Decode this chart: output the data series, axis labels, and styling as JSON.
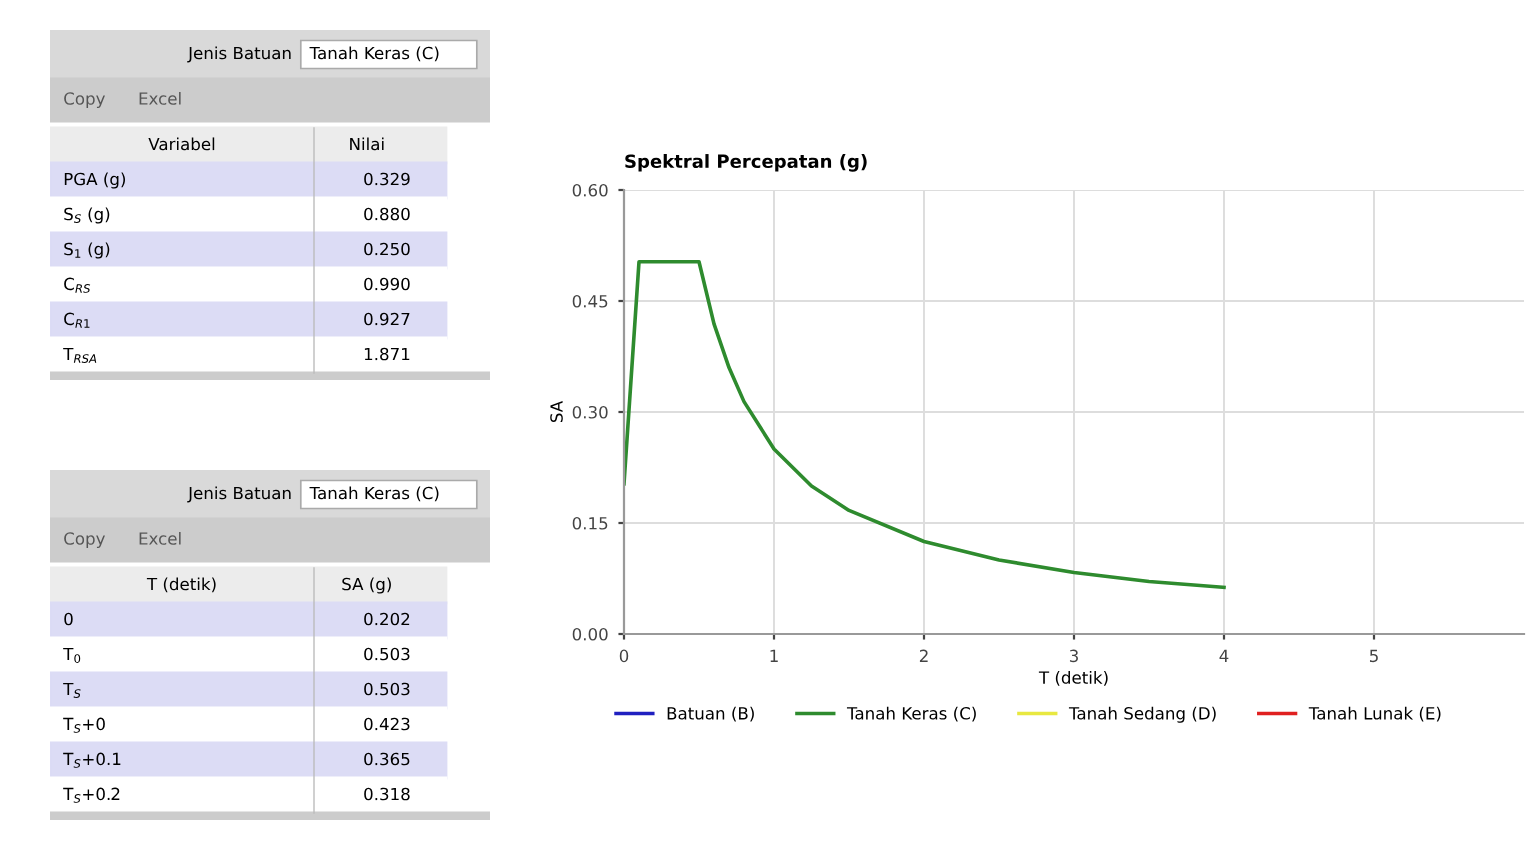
{
  "chart_data": [
    {
      "type": "other",
      "title": "Jenis Batuan",
      "subtitle": "Tanah Keras (C)",
      "annotations": [
        "Copy",
        "Excel",
        "Variabel",
        "Nilai",
        "PGA (g)",
        "0.329",
        "S$_{S}$ (g)",
        "0.880",
        "S$_{1}$ (g)",
        "0.250",
        "C$_{RS}$",
        "0.990",
        "C$_{R1}$",
        "0.927",
        "T$_{RSA}$",
        "1.871"
      ]
    },
    {
      "type": "other",
      "title": "Jenis Batuan",
      "subtitle": "Tanah Keras (C)",
      "annotations": [
        "Copy",
        "Excel",
        "T (detik)",
        "SA (g)",
        "0",
        "0.202",
        "T$_{0}$",
        "0.503",
        "T$_{S}$",
        "0.503",
        "T$_{S}$+0",
        "0.423",
        "T$_{S}$+0.1",
        "0.365",
        "T$_{S}$+0.2",
        "0.318"
      ]
    },
    {
      "type": "line",
      "title": "Spektral Percepatan (g)",
      "xlabel": "T (detik)",
      "ylabel": "SA",
      "xlim": [
        0,
        6
      ],
      "xticks": [
        0,
        1,
        2,
        3,
        4,
        5
      ],
      "ylim": [
        0,
        0.6
      ],
      "yticks": [
        {
          "value": 0,
          "label": "0.00"
        },
        {
          "value": 0.15,
          "label": "0.15"
        },
        {
          "value": 0.3,
          "label": "0.30"
        },
        {
          "value": 0.45,
          "label": "0.45"
        },
        {
          "value": 0.6,
          "label": "0.60"
        }
      ],
      "grid": true,
      "legend": "bottom",
      "series": [
        {
          "name": "Batuan (B)",
          "color": "#2020c0"
        },
        {
          "name": "Tanah Keras (C)",
          "color": "#2e8b2e",
          "x": [
            0,
            0.1,
            0.5,
            0.6,
            0.7,
            0.8,
            1.0,
            1.25,
            1.5,
            2.0,
            2.5,
            3.0,
            3.5,
            4.0
          ],
          "values": [
            0.203,
            0.503,
            0.503,
            0.419,
            0.36,
            0.314,
            0.25,
            0.2,
            0.167,
            0.125,
            0.1,
            0.083,
            0.071,
            0.063
          ]
        },
        {
          "name": "Tanah Sedang (D)",
          "color": "#e8e840"
        },
        {
          "name": "Tanah Lunak (E)",
          "color": "#e02020"
        }
      ]
    }
  ]
}
